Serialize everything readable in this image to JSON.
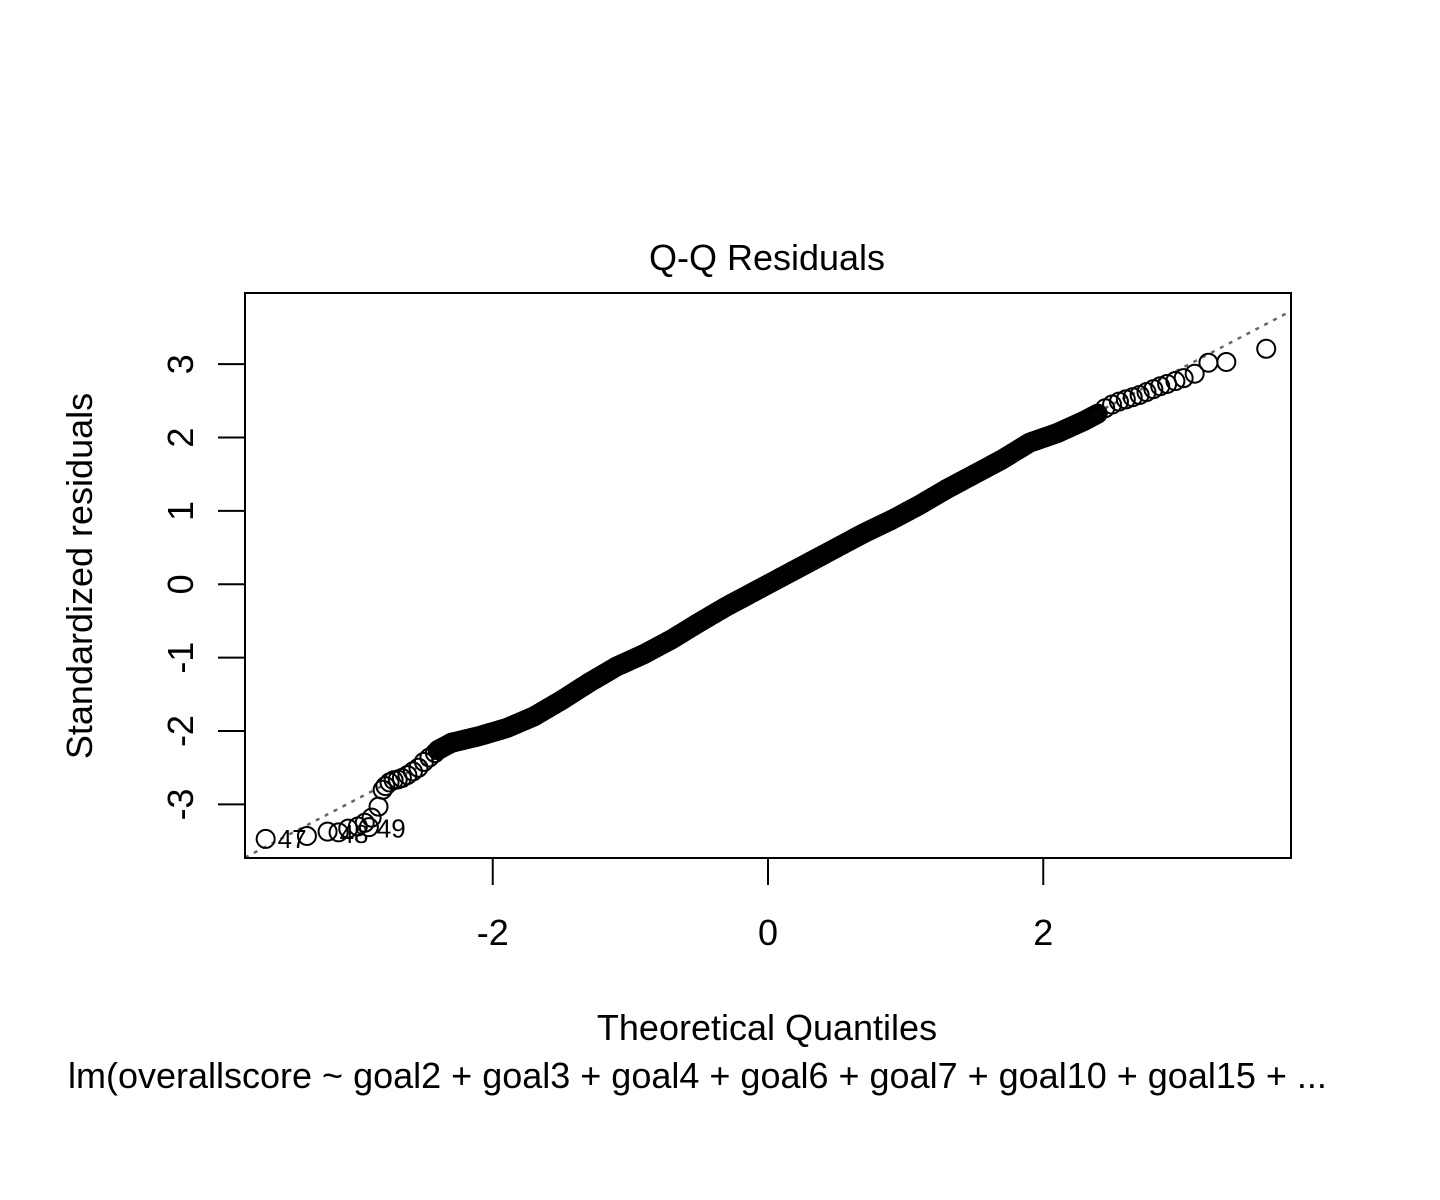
{
  "chart_data": {
    "type": "scatter",
    "title": "Q-Q Residuals",
    "xlabel": "Theoretical Quantiles",
    "ylabel": "Standardized residuals",
    "subtitle": "lm(overallscore ~ goal2 + goal3 + goal4 + goal6 + goal7 + goal10 + goal15 + ...",
    "xlim": [
      -3.8,
      3.8
    ],
    "ylim": [
      -3.73,
      3.97
    ],
    "x_ticks": [
      -2,
      0,
      2
    ],
    "x_tick_labels": [
      "-2",
      "0",
      "2"
    ],
    "y_ticks": [
      -3,
      -2,
      -1,
      0,
      1,
      2,
      3
    ],
    "y_tick_labels": [
      "-3",
      "-2",
      "-1",
      "0",
      "1",
      "2",
      "3"
    ],
    "reference_line": {
      "intercept": 0.0,
      "slope": 0.98,
      "style": "dotted",
      "color": "#666666"
    },
    "tail_points": [
      {
        "x": -3.65,
        "y": -3.47
      },
      {
        "x": -3.35,
        "y": -3.43
      },
      {
        "x": -3.2,
        "y": -3.37
      },
      {
        "x": -3.12,
        "y": -3.38
      },
      {
        "x": -3.05,
        "y": -3.33
      },
      {
        "x": -2.98,
        "y": -3.3
      },
      {
        "x": -2.93,
        "y": -3.25
      },
      {
        "x": -2.9,
        "y": -3.31
      },
      {
        "x": -2.88,
        "y": -3.18
      },
      {
        "x": -2.83,
        "y": -3.03
      },
      {
        "x": -2.8,
        "y": -2.8
      },
      {
        "x": -2.78,
        "y": -2.75
      },
      {
        "x": -2.75,
        "y": -2.7
      },
      {
        "x": -2.72,
        "y": -2.67
      },
      {
        "x": -2.69,
        "y": -2.66
      },
      {
        "x": -2.66,
        "y": -2.64
      },
      {
        "x": -2.62,
        "y": -2.6
      },
      {
        "x": -2.58,
        "y": -2.55
      },
      {
        "x": -2.54,
        "y": -2.5
      },
      {
        "x": -2.5,
        "y": -2.42
      },
      {
        "x": -2.46,
        "y": -2.36
      },
      {
        "x": -2.42,
        "y": -2.3
      },
      {
        "x": 2.45,
        "y": 2.4
      },
      {
        "x": 2.5,
        "y": 2.45
      },
      {
        "x": 2.55,
        "y": 2.49
      },
      {
        "x": 2.6,
        "y": 2.52
      },
      {
        "x": 2.65,
        "y": 2.55
      },
      {
        "x": 2.7,
        "y": 2.58
      },
      {
        "x": 2.75,
        "y": 2.62
      },
      {
        "x": 2.8,
        "y": 2.66
      },
      {
        "x": 2.85,
        "y": 2.7
      },
      {
        "x": 2.9,
        "y": 2.73
      },
      {
        "x": 2.96,
        "y": 2.77
      },
      {
        "x": 3.02,
        "y": 2.81
      },
      {
        "x": 3.1,
        "y": 2.87
      },
      {
        "x": 3.2,
        "y": 3.02
      },
      {
        "x": 3.33,
        "y": 3.03
      },
      {
        "x": 3.62,
        "y": 3.21
      }
    ],
    "bulk_curve": [
      {
        "x": -2.4,
        "y": -2.26
      },
      {
        "x": -2.3,
        "y": -2.16
      },
      {
        "x": -2.1,
        "y": -2.07
      },
      {
        "x": -1.9,
        "y": -1.96
      },
      {
        "x": -1.7,
        "y": -1.8
      },
      {
        "x": -1.5,
        "y": -1.58
      },
      {
        "x": -1.3,
        "y": -1.34
      },
      {
        "x": -1.1,
        "y": -1.12
      },
      {
        "x": -0.9,
        "y": -0.95
      },
      {
        "x": -0.7,
        "y": -0.75
      },
      {
        "x": -0.5,
        "y": -0.52
      },
      {
        "x": -0.3,
        "y": -0.3
      },
      {
        "x": -0.1,
        "y": -0.1
      },
      {
        "x": 0.1,
        "y": 0.1
      },
      {
        "x": 0.3,
        "y": 0.3
      },
      {
        "x": 0.5,
        "y": 0.5
      },
      {
        "x": 0.7,
        "y": 0.7
      },
      {
        "x": 0.9,
        "y": 0.88
      },
      {
        "x": 1.1,
        "y": 1.08
      },
      {
        "x": 1.3,
        "y": 1.3
      },
      {
        "x": 1.5,
        "y": 1.5
      },
      {
        "x": 1.7,
        "y": 1.7
      },
      {
        "x": 1.9,
        "y": 1.93
      },
      {
        "x": 2.1,
        "y": 2.06
      },
      {
        "x": 2.3,
        "y": 2.23
      },
      {
        "x": 2.4,
        "y": 2.33
      }
    ],
    "annotations": [
      {
        "text": "47",
        "x": -3.65,
        "y": -3.47,
        "position": "right"
      },
      {
        "text": "48",
        "x": -3.2,
        "y": -3.4,
        "position": "right"
      },
      {
        "text": "49",
        "x": -2.93,
        "y": -3.33,
        "position": "right"
      }
    ],
    "grid": false,
    "legend": "none",
    "marker": "open-circle",
    "colors": {
      "points": "#000000",
      "reference_line": "#666666",
      "frame": "#000000"
    }
  }
}
